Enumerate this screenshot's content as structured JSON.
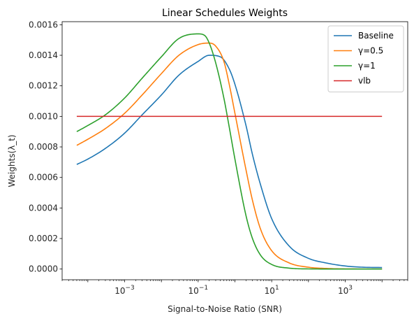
{
  "chart_data": {
    "type": "line",
    "title": "Linear Schedules Weights",
    "xlabel": "Signal-to-Noise Ratio (SNR)",
    "ylabel": "Weights(λ_t)",
    "x_scale": "log",
    "xlim": [
      2e-05,
      50000
    ],
    "ylim": [
      -7e-05,
      0.00162
    ],
    "x_ticks": [
      {
        "value": 0.001,
        "base": "10",
        "exp": "−3"
      },
      {
        "value": 0.1,
        "base": "10",
        "exp": "−1"
      },
      {
        "value": 10,
        "base": "10",
        "exp": "1"
      },
      {
        "value": 1000,
        "base": "10",
        "exp": "3"
      }
    ],
    "y_ticks": [
      {
        "value": 0.0,
        "label": "0.0000"
      },
      {
        "value": 0.0002,
        "label": "0.0002"
      },
      {
        "value": 0.0004,
        "label": "0.0004"
      },
      {
        "value": 0.0006,
        "label": "0.0006"
      },
      {
        "value": 0.0008,
        "label": "0.0008"
      },
      {
        "value": 0.001,
        "label": "0.0010"
      },
      {
        "value": 0.0012,
        "label": "0.0012"
      },
      {
        "value": 0.0014,
        "label": "0.0014"
      },
      {
        "value": 0.0016,
        "label": "0.0016"
      }
    ],
    "legend_position": "top-right",
    "series": [
      {
        "name": "Baseline",
        "color": "#1f77b4",
        "x": [
          5e-05,
          0.0001,
          0.0003,
          0.001,
          0.003,
          0.01,
          0.03,
          0.1,
          0.2,
          0.4,
          0.7,
          1,
          2,
          3,
          5,
          10,
          30,
          100,
          300,
          1000,
          3000,
          10000
        ],
        "y": [
          0.000685,
          0.00072,
          0.00079,
          0.00089,
          0.00101,
          0.00114,
          0.00127,
          0.00136,
          0.0014,
          0.00139,
          0.00131,
          0.00121,
          0.00094,
          0.00075,
          0.00055,
          0.00033,
          0.00015,
          7e-05,
          4e-05,
          2e-05,
          1.2e-05,
          1e-05
        ]
      },
      {
        "name": "γ=0.5",
        "color": "#ff7f0e",
        "x": [
          5e-05,
          0.0001,
          0.0003,
          0.001,
          0.003,
          0.01,
          0.03,
          0.1,
          0.2,
          0.3,
          0.5,
          0.7,
          1,
          2,
          3,
          5,
          10,
          30,
          100,
          300,
          1000,
          10000
        ],
        "y": [
          0.00081,
          0.00085,
          0.00092,
          0.00102,
          0.00114,
          0.00128,
          0.0014,
          0.00147,
          0.00148,
          0.00146,
          0.00136,
          0.00121,
          0.00102,
          0.00065,
          0.00045,
          0.00026,
          0.00012,
          4e-05,
          1.2e-05,
          4e-06,
          1e-06,
          0.0
        ]
      },
      {
        "name": "γ=1",
        "color": "#2ca02c",
        "x": [
          5e-05,
          0.0001,
          0.0003,
          0.001,
          0.003,
          0.01,
          0.03,
          0.1,
          0.15,
          0.2,
          0.3,
          0.5,
          0.7,
          1,
          2,
          3,
          5,
          10,
          30,
          100,
          1000,
          10000
        ],
        "y": [
          0.0009,
          0.00094,
          0.00101,
          0.00112,
          0.00125,
          0.00139,
          0.00151,
          0.00154,
          0.00153,
          0.00148,
          0.00135,
          0.00112,
          0.00093,
          0.00072,
          0.00035,
          0.0002,
          9e-05,
          3e-05,
          6e-06,
          1e-06,
          0.0,
          0.0
        ]
      },
      {
        "name": "vlb",
        "color": "#d62728",
        "x": [
          5e-05,
          10000
        ],
        "y": [
          0.001,
          0.001
        ]
      }
    ]
  }
}
